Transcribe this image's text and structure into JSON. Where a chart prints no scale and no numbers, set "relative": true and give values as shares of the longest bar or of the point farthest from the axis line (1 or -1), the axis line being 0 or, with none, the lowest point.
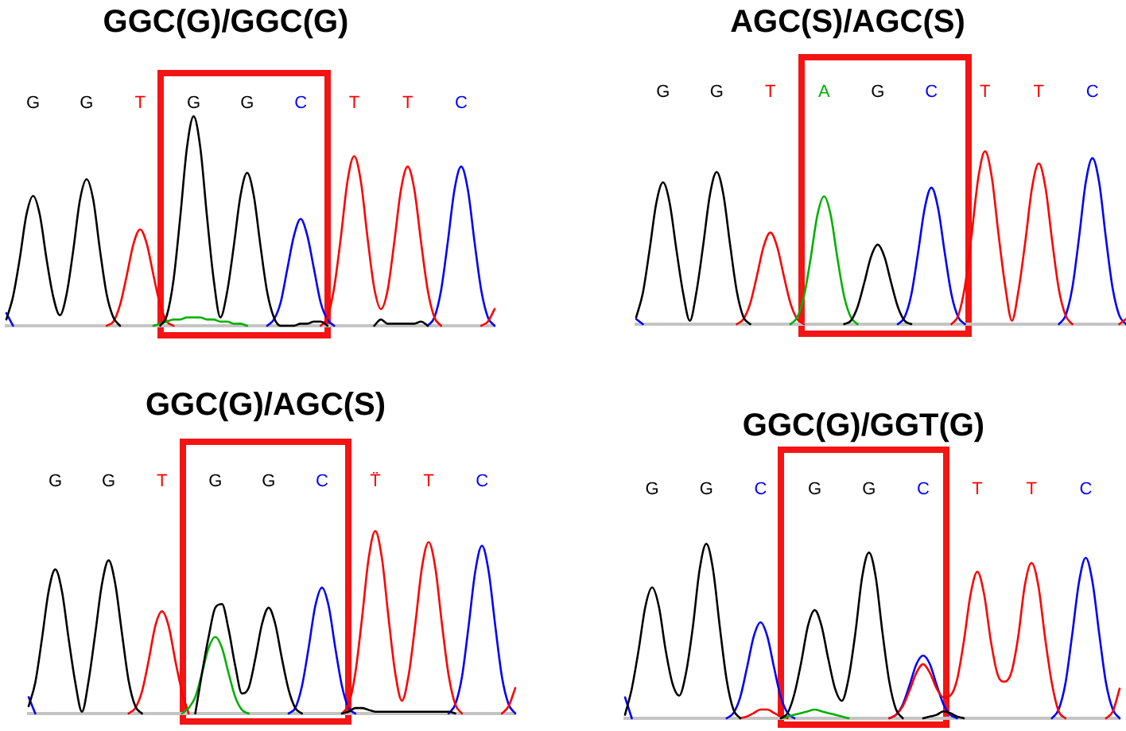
{
  "chart_data": [
    {
      "type": "line",
      "title": "GGC(G)/GGC(G)",
      "relative": true,
      "categories": [
        null,
        null,
        null,
        null,
        "G",
        null,
        null,
        null,
        null,
        null,
        null,
        null,
        "G",
        null,
        null,
        null,
        null,
        null,
        null,
        null,
        "T",
        null,
        null,
        null,
        null,
        null,
        null,
        null,
        "G",
        null,
        null,
        null,
        null,
        null,
        null,
        null,
        "G",
        null,
        null,
        null,
        null,
        null,
        null,
        null,
        "C",
        null,
        null,
        null,
        null,
        null,
        null,
        null,
        "T",
        null,
        null,
        null,
        null,
        null,
        null,
        null,
        "T",
        null,
        null,
        null,
        null,
        null,
        null,
        null,
        "C",
        null,
        null,
        null,
        null,
        null
      ],
      "tick_labels": "x",
      "grid": false,
      "marker": "none",
      "series": [
        {
          "color": "#000000",
          "values": [
            0.03,
            0.14,
            0.32,
            0.53,
            0.62,
            0.53,
            0.32,
            0.14,
            0.05,
            0.15,
            0.36,
            0.6,
            0.7,
            0.6,
            0.36,
            0.15,
            0.04,
            0,
            null,
            null,
            null,
            null,
            null,
            0,
            0.05,
            0.22,
            0.52,
            0.85,
            1,
            0.85,
            0.52,
            0.22,
            0.04,
            0.16,
            0.38,
            0.62,
            0.73,
            0.62,
            0.38,
            0.16,
            0.04,
            0,
            0,
            0,
            0.01,
            0.01,
            0.02,
            0.02,
            0,
            null,
            null,
            null,
            null,
            null,
            null,
            0,
            0.03,
            0.01,
            0.01,
            0.01,
            0.01,
            0.01,
            0.02,
            0,
            null,
            null,
            null,
            null,
            null,
            null,
            null,
            null,
            null,
            null
          ]
        },
        {
          "color": "#00b000",
          "values": [
            null,
            null,
            null,
            null,
            null,
            null,
            null,
            null,
            null,
            null,
            null,
            null,
            null,
            null,
            null,
            null,
            null,
            null,
            null,
            null,
            null,
            null,
            0,
            0.01,
            0.02,
            0.03,
            0.03,
            0.04,
            0.04,
            0.04,
            0.03,
            0.03,
            0.02,
            0.02,
            0.01,
            0.01,
            0,
            null,
            null,
            null,
            null,
            null,
            null,
            null,
            null,
            null,
            null,
            null,
            null,
            null,
            null,
            null,
            null,
            null,
            null,
            null,
            null,
            null,
            null,
            null,
            null,
            null,
            null,
            null,
            null,
            null,
            null,
            null,
            null,
            null,
            null,
            null,
            null,
            null
          ]
        },
        {
          "color": "#ff0000",
          "values": [
            null,
            null,
            null,
            null,
            null,
            null,
            null,
            null,
            null,
            null,
            null,
            null,
            null,
            null,
            null,
            0,
            0.02,
            0.1,
            0.24,
            0.39,
            0.46,
            0.39,
            0.24,
            0.1,
            0.02,
            0,
            null,
            null,
            null,
            null,
            null,
            null,
            null,
            null,
            null,
            null,
            null,
            null,
            null,
            null,
            null,
            null,
            null,
            null,
            null,
            null,
            null,
            0,
            0.04,
            0.18,
            0.42,
            0.69,
            0.81,
            0.69,
            0.42,
            0.18,
            0.08,
            0.17,
            0.4,
            0.65,
            0.76,
            0.65,
            0.4,
            0.17,
            0.04,
            0,
            null,
            null,
            null,
            null,
            null,
            0,
            0.02,
            0.08
          ]
        },
        {
          "color": "#0000ff",
          "values": [
            0.06,
            0,
            null,
            null,
            null,
            null,
            null,
            null,
            null,
            null,
            null,
            null,
            null,
            null,
            null,
            null,
            null,
            null,
            null,
            null,
            null,
            null,
            null,
            null,
            null,
            null,
            null,
            null,
            null,
            null,
            null,
            null,
            null,
            null,
            null,
            null,
            null,
            null,
            null,
            0,
            0.03,
            0.11,
            0.27,
            0.43,
            0.51,
            0.43,
            0.27,
            0.11,
            0.03,
            0,
            null,
            null,
            null,
            null,
            null,
            null,
            null,
            null,
            null,
            null,
            null,
            null,
            null,
            0,
            0.04,
            0.17,
            0.4,
            0.65,
            0.76,
            0.65,
            0.4,
            0.17,
            0.04,
            0
          ]
        }
      ]
    },
    {
      "type": "line",
      "title": "AGC(S)/AGC(S)",
      "relative": true,
      "categories": [
        null,
        null,
        null,
        null,
        "G",
        null,
        null,
        null,
        null,
        null,
        null,
        null,
        "G",
        null,
        null,
        null,
        null,
        null,
        null,
        null,
        "T",
        null,
        null,
        null,
        null,
        null,
        null,
        null,
        "A",
        null,
        null,
        null,
        null,
        null,
        null,
        null,
        "G",
        null,
        null,
        null,
        null,
        null,
        null,
        null,
        "C",
        null,
        null,
        null,
        null,
        null,
        null,
        null,
        "T",
        null,
        null,
        null,
        null,
        null,
        null,
        null,
        "T",
        null,
        null,
        null,
        null,
        null,
        null,
        null,
        "C",
        null,
        null,
        null,
        null,
        null
      ],
      "tick_labels": "x",
      "grid": false,
      "marker": "none",
      "series": [
        {
          "color": "#000000",
          "values": [
            0.04,
            0.18,
            0.43,
            0.7,
            0.82,
            0.7,
            0.43,
            0.18,
            0.02,
            0.19,
            0.46,
            0.75,
            0.88,
            0.75,
            0.46,
            0.19,
            0.04,
            0,
            null,
            null,
            null,
            null,
            null,
            null,
            null,
            null,
            null,
            null,
            null,
            null,
            null,
            0,
            0.02,
            0.1,
            0.24,
            0.39,
            0.46,
            0.39,
            0.24,
            0.1,
            0.02,
            0,
            null,
            null,
            null,
            null,
            null,
            null,
            null,
            null,
            null,
            null,
            null,
            null,
            null,
            null,
            null,
            null,
            null,
            null,
            null,
            null,
            null,
            null,
            null,
            null,
            null,
            null,
            null,
            null,
            null,
            null,
            null,
            null
          ]
        },
        {
          "color": "#00b000",
          "values": [
            null,
            null,
            null,
            null,
            null,
            null,
            null,
            null,
            null,
            null,
            null,
            null,
            null,
            null,
            null,
            null,
            null,
            null,
            null,
            null,
            null,
            null,
            null,
            0,
            0.04,
            0.16,
            0.38,
            0.63,
            0.74,
            0.63,
            0.38,
            0.16,
            0.04,
            0,
            null,
            null,
            null,
            null,
            null,
            null,
            null,
            null,
            null,
            null,
            null,
            null,
            null,
            null,
            null,
            null,
            null,
            null,
            null,
            null,
            null,
            null,
            null,
            null,
            null,
            null,
            null,
            null,
            null,
            null,
            null,
            null,
            null,
            null,
            null,
            null,
            null,
            null,
            null,
            null
          ]
        },
        {
          "color": "#ff0000",
          "values": [
            null,
            null,
            null,
            null,
            null,
            null,
            null,
            null,
            null,
            null,
            null,
            null,
            null,
            null,
            null,
            0,
            0.03,
            0.12,
            0.28,
            0.45,
            0.53,
            0.45,
            0.28,
            0.12,
            0.03,
            0,
            null,
            null,
            null,
            null,
            null,
            null,
            null,
            null,
            null,
            null,
            null,
            null,
            null,
            null,
            null,
            null,
            null,
            null,
            null,
            null,
            null,
            0,
            0.05,
            0.22,
            0.52,
            0.85,
            1,
            0.85,
            0.52,
            0.22,
            0.02,
            0.2,
            0.48,
            0.79,
            0.93,
            0.79,
            0.48,
            0.2,
            0.05,
            0,
            null,
            null,
            null,
            null,
            null,
            null,
            0,
            0.03
          ]
        },
        {
          "color": "#0000ff",
          "values": [
            0.03,
            0,
            null,
            null,
            null,
            null,
            null,
            null,
            null,
            null,
            null,
            null,
            null,
            null,
            null,
            null,
            null,
            null,
            null,
            null,
            null,
            null,
            null,
            null,
            null,
            null,
            null,
            null,
            null,
            null,
            null,
            null,
            null,
            null,
            null,
            null,
            null,
            null,
            null,
            0,
            0.04,
            0.17,
            0.41,
            0.67,
            0.79,
            0.67,
            0.41,
            0.17,
            0.04,
            0,
            null,
            null,
            null,
            null,
            null,
            null,
            null,
            null,
            null,
            null,
            null,
            null,
            null,
            0,
            0.05,
            0.21,
            0.5,
            0.82,
            0.96,
            0.82,
            0.5,
            0.21,
            0.05,
            0
          ]
        }
      ]
    },
    {
      "type": "line",
      "title": "GGC(G)/AGC(S)",
      "relative": true,
      "categories": [
        null,
        null,
        null,
        null,
        "G",
        null,
        null,
        null,
        null,
        null,
        null,
        null,
        "G",
        null,
        null,
        null,
        null,
        null,
        null,
        null,
        "T",
        null,
        null,
        null,
        null,
        null,
        null,
        null,
        "G",
        null,
        null,
        null,
        null,
        null,
        null,
        null,
        "G",
        null,
        null,
        null,
        null,
        null,
        null,
        null,
        "C",
        null,
        null,
        null,
        null,
        null,
        null,
        null,
        "T̈",
        null,
        null,
        null,
        null,
        null,
        null,
        null,
        "T",
        null,
        null,
        null,
        null,
        null,
        null,
        null,
        "C",
        null,
        null,
        null,
        null,
        null
      ],
      "tick_labels": "x",
      "grid": false,
      "marker": "none",
      "series": [
        {
          "color": "#000000",
          "values": [
            0.04,
            0.17,
            0.41,
            0.67,
            0.79,
            0.67,
            0.41,
            0.17,
            0.01,
            0.18,
            0.44,
            0.71,
            0.84,
            0.71,
            0.44,
            0.18,
            0.04,
            0,
            null,
            null,
            null,
            null,
            null,
            null,
            null,
            0,
            0.22,
            0.42,
            0.58,
            0.6,
            0.46,
            0.26,
            0.11,
            0.14,
            0.3,
            0.49,
            0.58,
            0.49,
            0.3,
            0.13,
            0.03,
            0,
            null,
            null,
            null,
            null,
            null,
            0,
            0.01,
            0.03,
            0.03,
            0.02,
            0.01,
            0.01,
            0.01,
            0.01,
            0.01,
            0.01,
            0.01,
            0.01,
            0.01,
            0.01,
            0.01,
            0.01,
            0,
            null,
            null,
            null,
            null,
            null,
            null,
            null,
            null,
            null
          ]
        },
        {
          "color": "#00b000",
          "values": [
            null,
            null,
            null,
            null,
            null,
            null,
            null,
            null,
            null,
            null,
            null,
            null,
            null,
            null,
            null,
            null,
            null,
            null,
            null,
            null,
            null,
            null,
            null,
            0,
            0.03,
            0.09,
            0.22,
            0.36,
            0.42,
            0.36,
            0.22,
            0.09,
            0.02,
            0,
            null,
            null,
            null,
            null,
            null,
            null,
            null,
            null,
            null,
            null,
            null,
            null,
            null,
            null,
            null,
            null,
            null,
            null,
            null,
            null,
            null,
            null,
            null,
            null,
            null,
            null,
            null,
            null,
            null,
            null,
            null,
            null,
            null,
            null,
            null,
            null,
            null,
            null,
            null,
            null
          ]
        },
        {
          "color": "#ff0000",
          "values": [
            null,
            null,
            null,
            null,
            null,
            null,
            null,
            null,
            null,
            null,
            null,
            null,
            null,
            null,
            null,
            0,
            0.03,
            0.12,
            0.29,
            0.48,
            0.56,
            0.48,
            0.29,
            0.12,
            0,
            null,
            null,
            null,
            null,
            null,
            null,
            null,
            null,
            null,
            null,
            null,
            null,
            null,
            null,
            null,
            null,
            null,
            null,
            null,
            null,
            null,
            null,
            0,
            0.05,
            0.22,
            0.52,
            0.85,
            1,
            0.85,
            0.52,
            0.22,
            0.07,
            0.21,
            0.49,
            0.8,
            0.94,
            0.8,
            0.49,
            0.21,
            0.05,
            0,
            null,
            null,
            null,
            null,
            null,
            0,
            0.04,
            0.14
          ]
        },
        {
          "color": "#0000ff",
          "values": [
            0.09,
            0,
            null,
            null,
            null,
            null,
            null,
            null,
            null,
            null,
            null,
            null,
            null,
            null,
            null,
            null,
            null,
            null,
            null,
            null,
            null,
            null,
            null,
            null,
            null,
            null,
            null,
            null,
            null,
            null,
            null,
            null,
            null,
            null,
            null,
            null,
            null,
            null,
            null,
            0,
            0.03,
            0.15,
            0.36,
            0.59,
            0.69,
            0.59,
            0.36,
            0.15,
            0.03,
            0,
            null,
            null,
            null,
            null,
            null,
            null,
            null,
            null,
            null,
            null,
            null,
            null,
            null,
            0,
            0.05,
            0.2,
            0.48,
            0.78,
            0.92,
            0.78,
            0.48,
            0.2,
            0.05,
            0
          ]
        }
      ]
    },
    {
      "type": "line",
      "title": "GGC(G)/GGT(G)",
      "relative": true,
      "categories": [
        null,
        null,
        null,
        null,
        "G",
        null,
        null,
        null,
        null,
        null,
        null,
        null,
        "G",
        null,
        null,
        null,
        null,
        null,
        null,
        null,
        "C",
        null,
        null,
        null,
        null,
        null,
        null,
        null,
        "G",
        null,
        null,
        null,
        null,
        null,
        null,
        null,
        "G",
        null,
        null,
        null,
        null,
        null,
        null,
        null,
        "C",
        null,
        null,
        null,
        null,
        null,
        null,
        null,
        "T",
        null,
        null,
        null,
        null,
        null,
        null,
        null,
        "T",
        null,
        null,
        null,
        null,
        null,
        null,
        null,
        "C",
        null,
        null,
        null,
        null,
        null
      ],
      "tick_labels": "x",
      "grid": false,
      "marker": "none",
      "series": [
        {
          "color": "#000000",
          "values": [
            0.02,
            0.17,
            0.39,
            0.64,
            0.75,
            0.64,
            0.39,
            0.2,
            0.13,
            0.26,
            0.52,
            0.85,
            1,
            0.85,
            0.52,
            0.22,
            0.05,
            0,
            null,
            null,
            null,
            null,
            null,
            0,
            0.03,
            0.14,
            0.32,
            0.53,
            0.62,
            0.53,
            0.34,
            0.17,
            0.1,
            0.23,
            0.49,
            0.81,
            0.95,
            0.81,
            0.49,
            0.21,
            0.05,
            0,
            null,
            null,
            0,
            0.01,
            0.02,
            0.04,
            0.03,
            0.01,
            0,
            null,
            null,
            null,
            null,
            null,
            null,
            null,
            null,
            null,
            null,
            null,
            null,
            null,
            null,
            null,
            null,
            null,
            null,
            null,
            null,
            null,
            null,
            null
          ]
        },
        {
          "color": "#00b000",
          "values": [
            null,
            null,
            null,
            null,
            null,
            null,
            null,
            null,
            null,
            null,
            null,
            null,
            null,
            null,
            null,
            null,
            null,
            null,
            null,
            null,
            null,
            null,
            null,
            0,
            0.01,
            0.02,
            0.03,
            0.04,
            0.05,
            0.04,
            0.03,
            0.02,
            0.01,
            0,
            null,
            null,
            null,
            null,
            null,
            null,
            null,
            null,
            null,
            null,
            null,
            null,
            null,
            null,
            null,
            null,
            null,
            null,
            null,
            null,
            null,
            null,
            null,
            null,
            null,
            null,
            null,
            null,
            null,
            null,
            null,
            null,
            null,
            null,
            null,
            null,
            null,
            null,
            null,
            null
          ]
        },
        {
          "color": "#ff0000",
          "values": [
            null,
            null,
            null,
            null,
            null,
            null,
            null,
            null,
            null,
            null,
            null,
            null,
            null,
            null,
            null,
            null,
            null,
            0,
            0.01,
            0.03,
            0.05,
            0.05,
            0.03,
            0.01,
            0,
            null,
            null,
            null,
            null,
            null,
            null,
            null,
            null,
            null,
            null,
            null,
            null,
            null,
            null,
            0,
            0.02,
            0.07,
            0.16,
            0.26,
            0.31,
            0.26,
            0.17,
            0.12,
            0.13,
            0.22,
            0.44,
            0.71,
            0.84,
            0.71,
            0.44,
            0.25,
            0.21,
            0.26,
            0.46,
            0.76,
            0.89,
            0.76,
            0.46,
            0.2,
            0.04,
            0,
            null,
            null,
            null,
            null,
            null,
            0,
            0.04,
            0.17
          ]
        },
        {
          "color": "#0000ff",
          "values": [
            0.12,
            0,
            null,
            null,
            null,
            null,
            null,
            null,
            null,
            null,
            null,
            null,
            null,
            null,
            null,
            0,
            0.03,
            0.12,
            0.29,
            0.47,
            0.55,
            0.47,
            0.29,
            0.12,
            0.03,
            0,
            null,
            null,
            null,
            null,
            null,
            null,
            null,
            null,
            null,
            null,
            null,
            null,
            null,
            0,
            0.02,
            0.08,
            0.19,
            0.31,
            0.36,
            0.31,
            0.19,
            0.08,
            0.02,
            0,
            null,
            null,
            null,
            null,
            null,
            null,
            null,
            null,
            null,
            null,
            null,
            null,
            null,
            0,
            0.05,
            0.2,
            0.48,
            0.78,
            0.92,
            0.78,
            0.48,
            0.2,
            0.05,
            0
          ]
        }
      ]
    }
  ]
}
